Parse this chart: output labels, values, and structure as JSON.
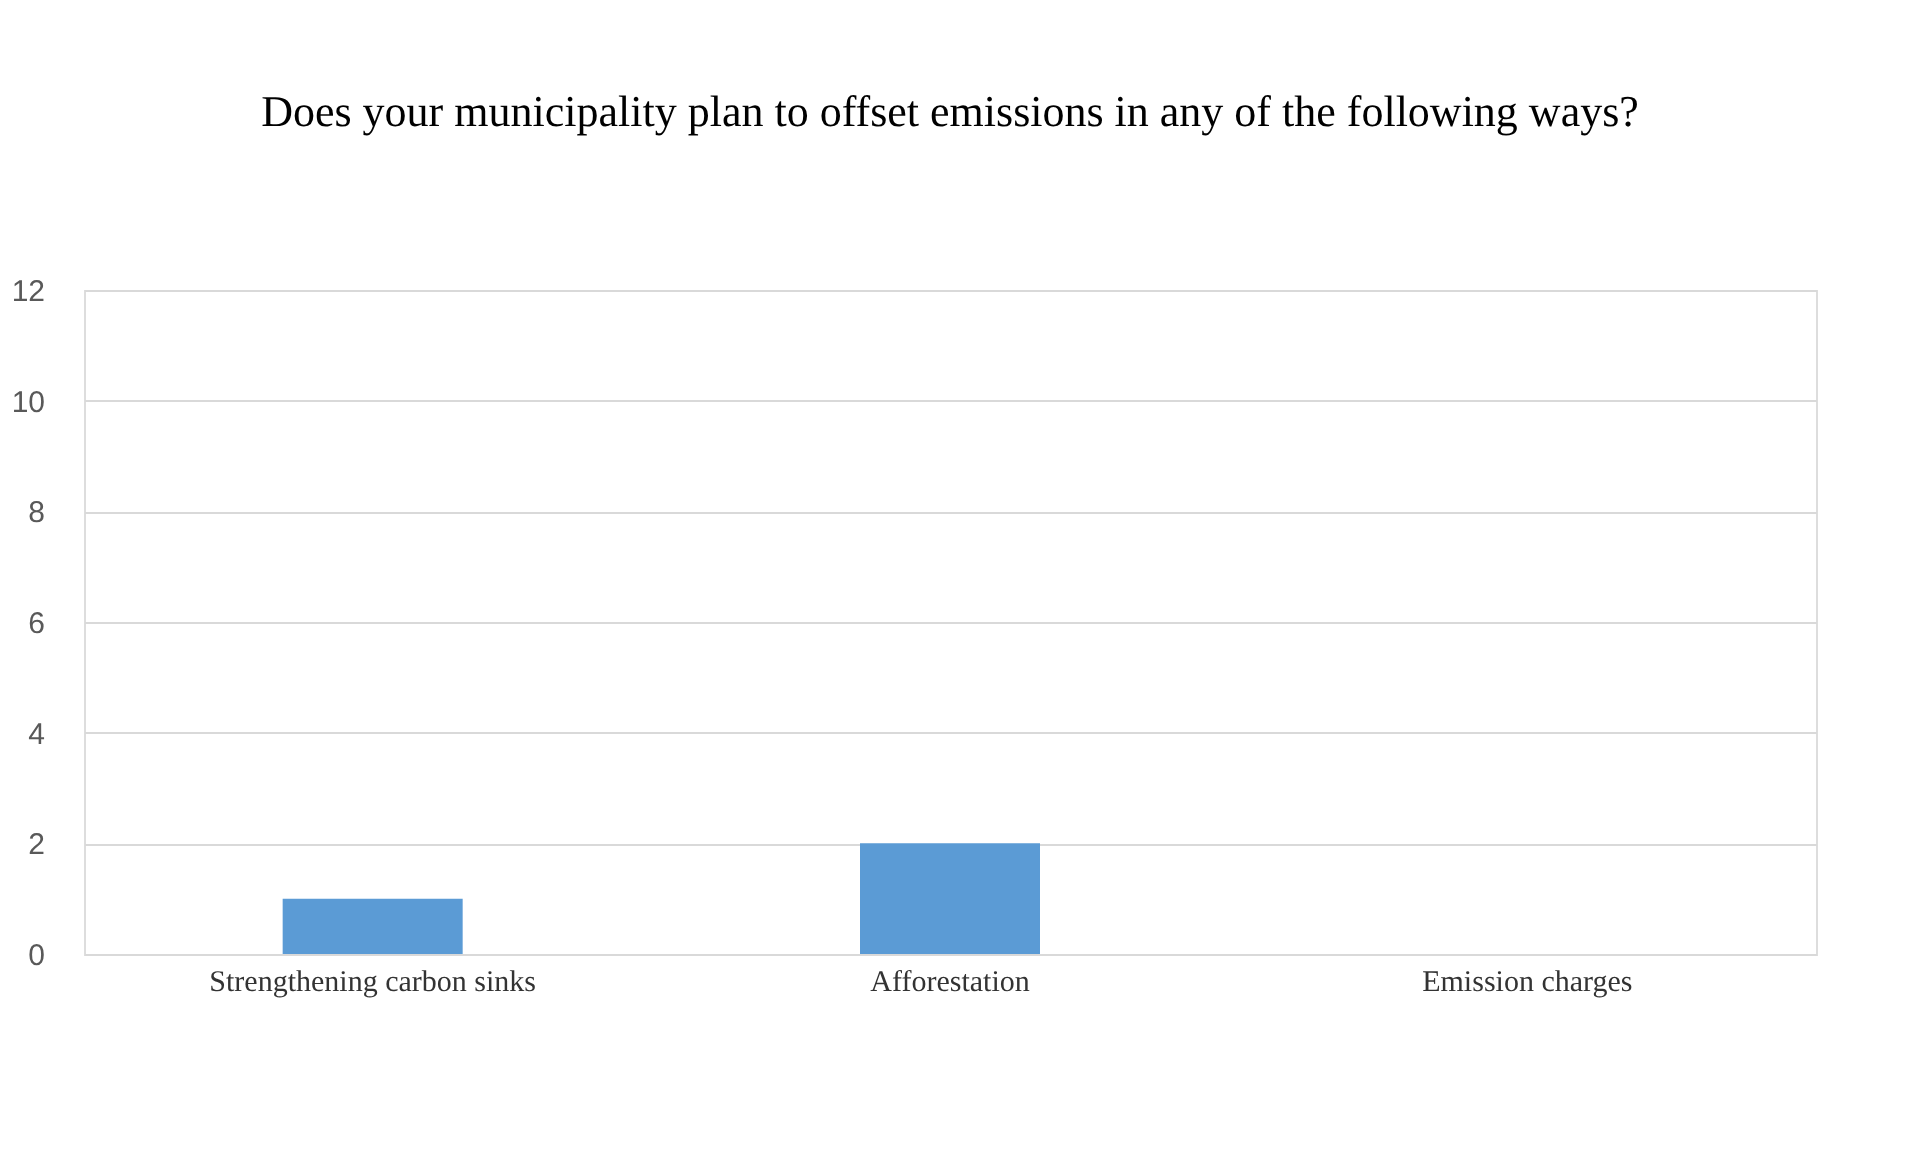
{
  "chart_data": {
    "type": "bar",
    "title": "Does your municipality plan to offset emissions in any of the following ways?",
    "categories": [
      "Strengthening carbon sinks",
      "Afforestation",
      "Emission charges"
    ],
    "values": [
      1,
      2,
      0
    ],
    "color": "#5b9bd5",
    "ylim": [
      0,
      12
    ],
    "yticks": [
      0,
      2,
      4,
      6,
      8,
      10,
      12
    ],
    "grid": "y"
  }
}
